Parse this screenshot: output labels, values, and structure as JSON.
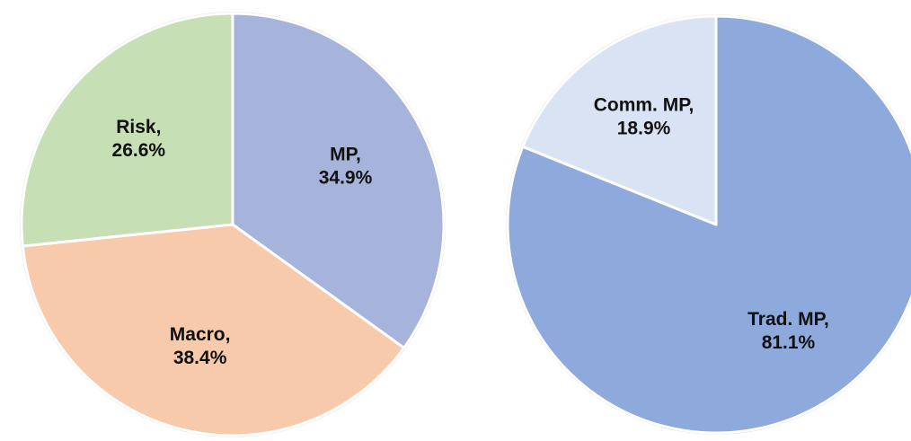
{
  "chart_data": [
    {
      "type": "pie",
      "categories": [
        "MP,",
        "Macro,",
        "Risk,"
      ],
      "values": [
        34.9,
        38.4,
        26.6
      ],
      "value_labels": [
        "34.9%",
        "38.4%",
        "26.6%"
      ],
      "colors": [
        "#a6b4db",
        "#f7caab",
        "#c6dfb5"
      ]
    },
    {
      "type": "pie",
      "categories": [
        "Trad. MP,",
        "Comm. MP,"
      ],
      "values": [
        81.1,
        18.9
      ],
      "value_labels": [
        "81.1%",
        "18.9%"
      ],
      "colors": [
        "#8eaadc",
        "#dae3f3"
      ]
    }
  ]
}
